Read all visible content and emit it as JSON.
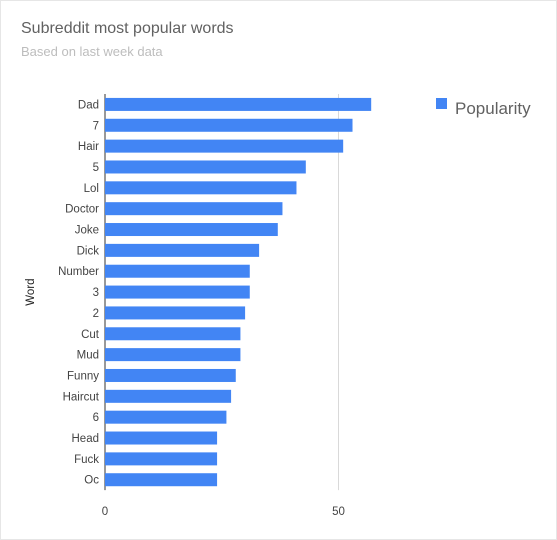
{
  "chart_data": {
    "type": "bar",
    "orientation": "horizontal",
    "title": "Subreddit most popular words",
    "subtitle": "Based on last week data",
    "ylabel": "Word",
    "xlabel": "",
    "categories": [
      "Dad",
      "7",
      "Hair",
      "5",
      "Lol",
      "Doctor",
      "Joke",
      "Dick",
      "Number",
      "3",
      "2",
      "Cut",
      "Mud",
      "Funny",
      "Haircut",
      "6",
      "Head",
      "Fuck",
      "Oc"
    ],
    "series": [
      {
        "name": "Popularity",
        "values": [
          57,
          53,
          51,
          43,
          41,
          38,
          37,
          33,
          31,
          31,
          30,
          29,
          29,
          28,
          27,
          26,
          24,
          24,
          24
        ],
        "color": "#4285f4"
      }
    ],
    "xlim": [
      0,
      60
    ],
    "xticks": [
      0,
      50
    ],
    "grid": true,
    "legend_position": "right"
  }
}
